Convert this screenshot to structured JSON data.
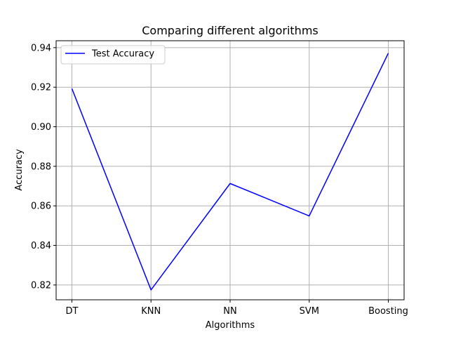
{
  "chart_data": {
    "type": "line",
    "title": "Comparing different algorithms",
    "xlabel": "Algorithms",
    "ylabel": "Accuracy",
    "categories": [
      "DT",
      "KNN",
      "NN",
      "SVM",
      "Boosting"
    ],
    "series": [
      {
        "name": "Test Accuracy",
        "color": "#0000ff",
        "values": [
          0.9193,
          0.8175,
          0.8713,
          0.8549,
          0.9372
        ]
      }
    ],
    "ylim": [
      0.8125,
      0.9435
    ],
    "yticks": [
      0.82,
      0.84,
      0.86,
      0.88,
      0.9,
      0.92,
      0.94
    ],
    "ytick_labels": [
      "0.82",
      "0.84",
      "0.86",
      "0.88",
      "0.90",
      "0.92",
      "0.94"
    ],
    "grid": true,
    "legend_position": "top-left"
  }
}
